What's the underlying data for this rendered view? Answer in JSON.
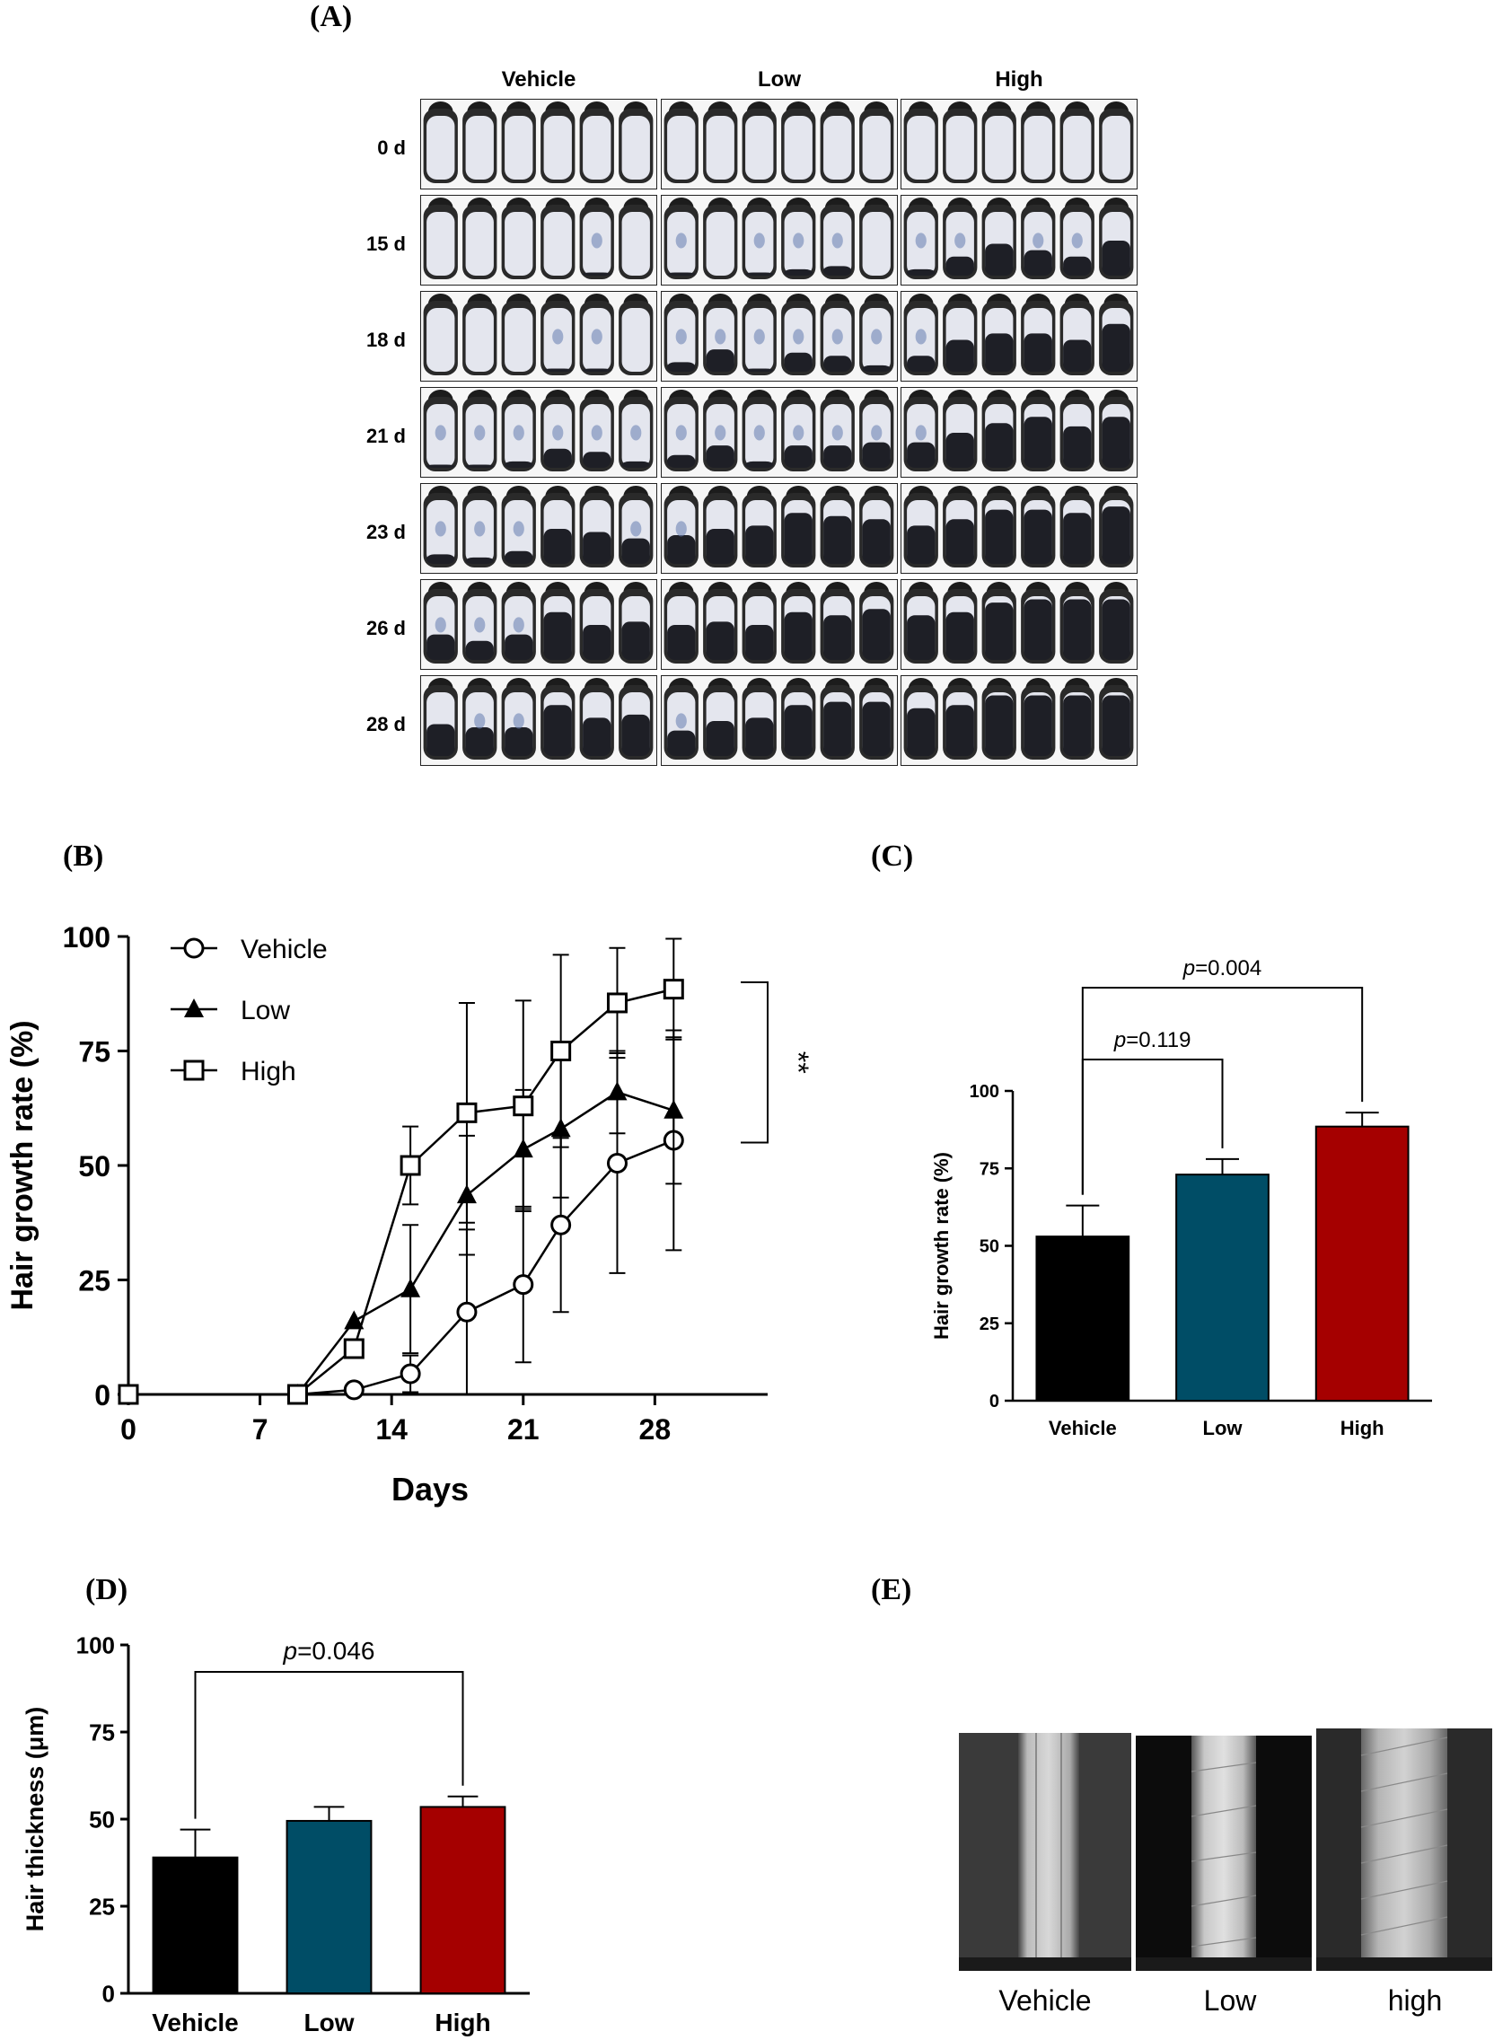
{
  "panels": {
    "a": "(A)",
    "b": "(B)",
    "c": "(C)",
    "d": "(D)",
    "e": "(E)"
  },
  "panel_a": {
    "columns": [
      "Vehicle",
      "Low",
      "High"
    ],
    "rows": [
      "0 d",
      "15 d",
      "18 d",
      "21 d",
      "23 d",
      "26 d",
      "28 d"
    ],
    "dark_coverage": [
      [
        [
          0,
          0,
          0,
          0,
          0,
          0
        ],
        [
          0,
          0,
          0,
          0,
          0,
          0
        ],
        [
          0,
          0,
          0,
          0,
          0,
          0
        ]
      ],
      [
        [
          0,
          0,
          0,
          0,
          0.05,
          0
        ],
        [
          0.05,
          0,
          0.05,
          0.1,
          0.15,
          0
        ],
        [
          0.1,
          0.3,
          0.5,
          0.4,
          0.3,
          0.55
        ]
      ],
      [
        [
          0,
          0,
          0,
          0.05,
          0.05,
          0
        ],
        [
          0.15,
          0.35,
          0.05,
          0.3,
          0.25,
          0.1
        ],
        [
          0.25,
          0.5,
          0.6,
          0.6,
          0.5,
          0.75
        ]
      ],
      [
        [
          0.05,
          0.05,
          0.1,
          0.3,
          0.25,
          0.1
        ],
        [
          0.2,
          0.35,
          0.1,
          0.35,
          0.35,
          0.4
        ],
        [
          0.4,
          0.55,
          0.7,
          0.8,
          0.65,
          0.8
        ]
      ],
      [
        [
          0.15,
          0.1,
          0.2,
          0.55,
          0.5,
          0.4
        ],
        [
          0.45,
          0.55,
          0.6,
          0.8,
          0.75,
          0.7
        ],
        [
          0.6,
          0.7,
          0.85,
          0.85,
          0.8,
          0.9
        ]
      ],
      [
        [
          0.4,
          0.3,
          0.4,
          0.75,
          0.55,
          0.6
        ],
        [
          0.55,
          0.6,
          0.55,
          0.75,
          0.7,
          0.8
        ],
        [
          0.7,
          0.75,
          0.9,
          0.95,
          0.95,
          0.95
        ]
      ],
      [
        [
          0.5,
          0.45,
          0.45,
          0.8,
          0.6,
          0.65
        ],
        [
          0.4,
          0.55,
          0.6,
          0.8,
          0.85,
          0.85
        ],
        [
          0.75,
          0.8,
          0.95,
          0.95,
          0.95,
          0.95
        ]
      ]
    ]
  },
  "chart_data": [
    {
      "id": "B",
      "type": "line",
      "xlabel": "Days",
      "ylabel": "Hair growth rate (%)",
      "xlim": [
        0,
        34
      ],
      "ylim": [
        0,
        100
      ],
      "xticks": [
        0,
        7,
        14,
        21,
        28
      ],
      "yticks": [
        0,
        25,
        50,
        75,
        100
      ],
      "legend": "top-left",
      "series": [
        {
          "name": "Vehicle",
          "marker": "circle",
          "x": [
            0,
            9,
            12,
            15,
            18,
            21,
            23,
            26,
            29
          ],
          "y": [
            0,
            0,
            1,
            4.5,
            18,
            24,
            37,
            50.5,
            55.5
          ],
          "err": [
            0,
            0,
            0,
            4,
            18,
            17,
            19,
            24,
            24
          ]
        },
        {
          "name": "Low",
          "marker": "triangle",
          "x": [
            0,
            9,
            12,
            15,
            18,
            21,
            23,
            26,
            29
          ],
          "y": [
            0,
            0,
            16,
            23,
            43.5,
            53.5,
            58,
            66,
            62
          ],
          "err": [
            0,
            0,
            0,
            14,
            13,
            13,
            15,
            9,
            16
          ]
        },
        {
          "name": "High",
          "marker": "square",
          "x": [
            0,
            9,
            12,
            15,
            18,
            21,
            23,
            26,
            29
          ],
          "y": [
            0,
            0,
            10,
            50,
            61.5,
            63,
            75,
            85.5,
            88.5
          ],
          "err": [
            0,
            0,
            0,
            8.5,
            24,
            23,
            21,
            12,
            11
          ]
        }
      ],
      "annotation": "**",
      "bracket": [
        55,
        90
      ]
    },
    {
      "id": "C",
      "type": "bar",
      "categories": [
        "Vehicle",
        "Low",
        "High"
      ],
      "values": [
        53,
        73,
        88.5
      ],
      "errors": [
        10,
        5,
        4.5
      ],
      "colors": [
        "#000000",
        "#004d66",
        "#a50000"
      ],
      "ylabel": "Hair growth rate (%)",
      "ylim": [
        0,
        100
      ],
      "yticks": [
        0,
        25,
        50,
        75,
        100
      ],
      "comparisons": [
        {
          "from": 0,
          "to": 1,
          "p_italic": "p",
          "p_value": "=0.119"
        },
        {
          "from": 0,
          "to": 2,
          "p_italic": "p",
          "p_value": "=0.004"
        }
      ]
    },
    {
      "id": "D",
      "type": "bar",
      "categories": [
        "Vehicle",
        "Low",
        "High"
      ],
      "values": [
        39,
        49.5,
        53.5
      ],
      "errors": [
        8,
        4,
        3
      ],
      "colors": [
        "#000000",
        "#004d66",
        "#a50000"
      ],
      "ylabel": "Hair thickness (μm)",
      "ylim": [
        0,
        100
      ],
      "yticks": [
        0,
        25,
        50,
        75,
        100
      ],
      "comparisons": [
        {
          "from": 0,
          "to": 2,
          "p_italic": "p",
          "p_value": "=0.046"
        }
      ]
    }
  ],
  "panel_e": {
    "captions": [
      "Vehicle",
      "Low",
      "high"
    ]
  }
}
